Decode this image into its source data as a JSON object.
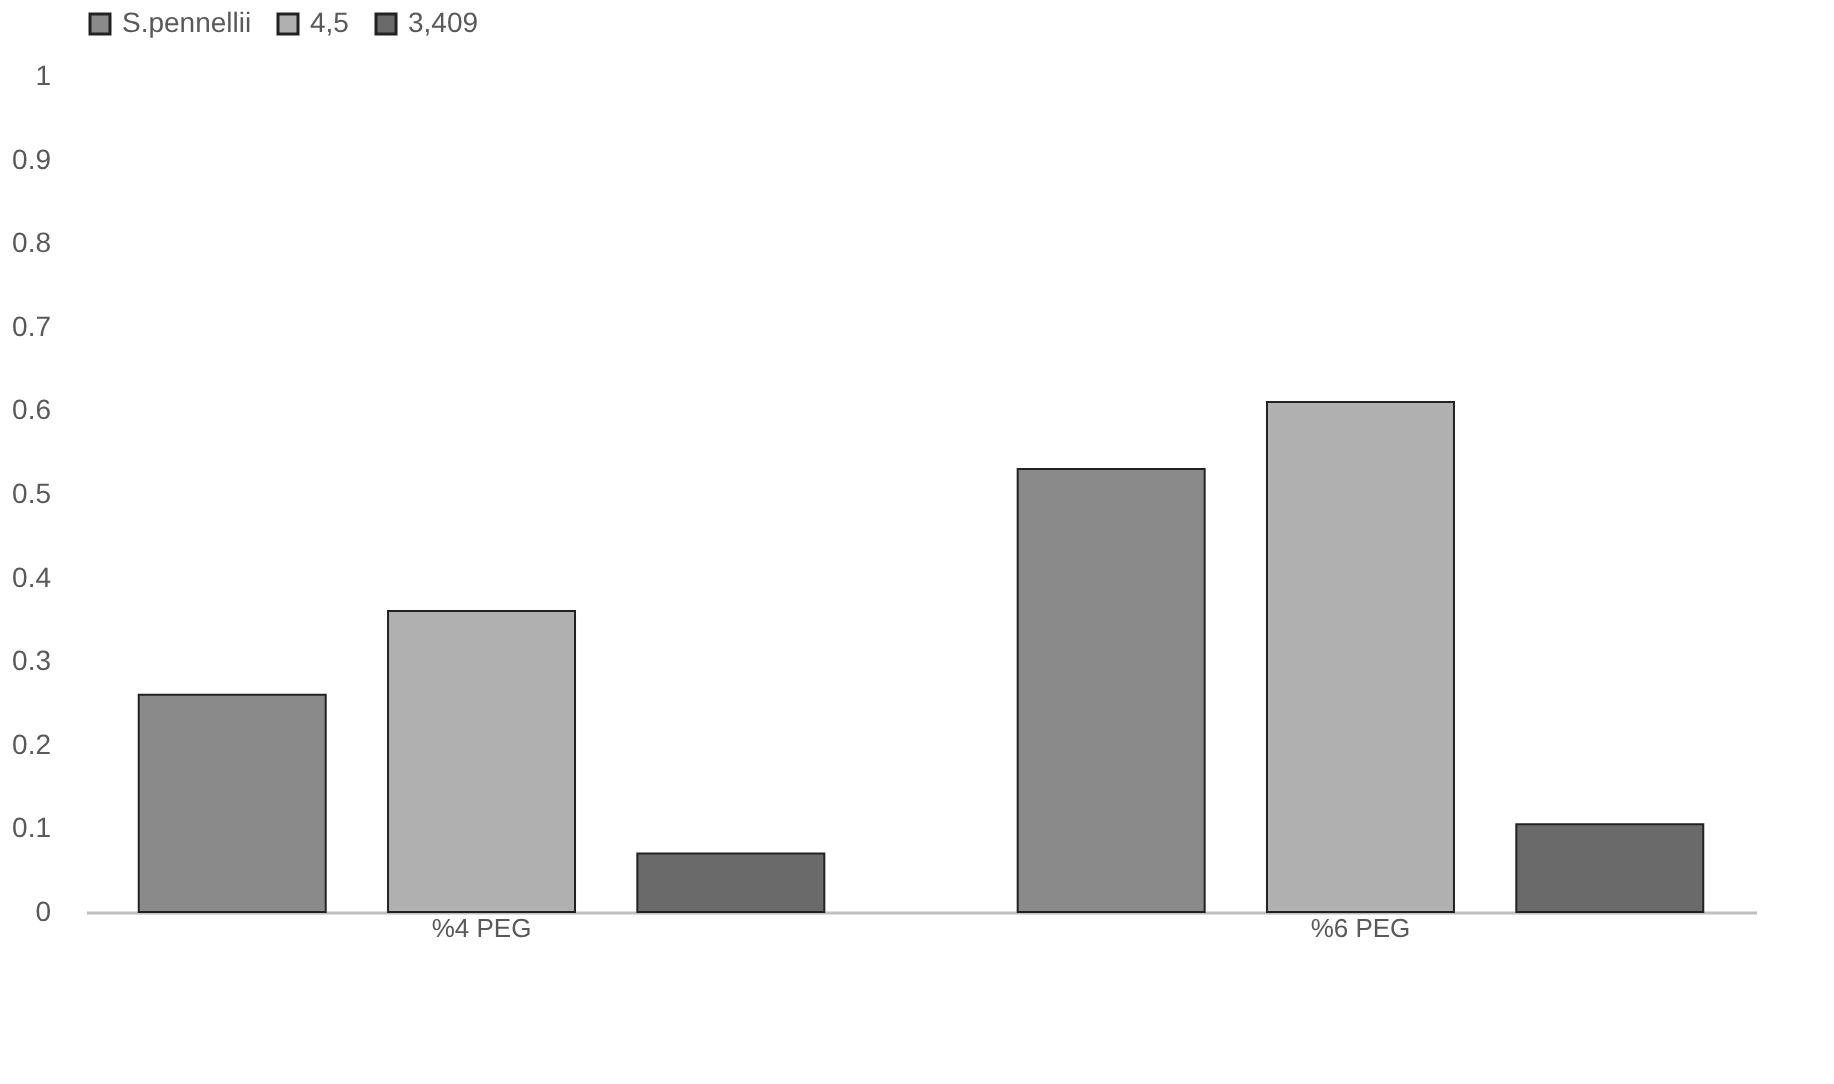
{
  "chart_data": {
    "type": "bar",
    "categories": [
      "%4 PEG",
      "%6 PEG"
    ],
    "series": [
      {
        "name": "S.pennellii",
        "color": "#8a8a8a",
        "values": [
          0.26,
          0.53
        ]
      },
      {
        "name": "4,5",
        "color": "#b0b0b0",
        "values": [
          0.36,
          0.61
        ]
      },
      {
        "name": "3,409",
        "color": "#6a6a6a",
        "values": [
          0.07,
          0.105
        ]
      }
    ],
    "ylim": [
      0,
      1
    ],
    "yticks": [
      0,
      0.1,
      0.2,
      0.3,
      0.4,
      0.5,
      0.6,
      0.7,
      0.8,
      0.9,
      1
    ],
    "grid": false,
    "legend": "top"
  }
}
